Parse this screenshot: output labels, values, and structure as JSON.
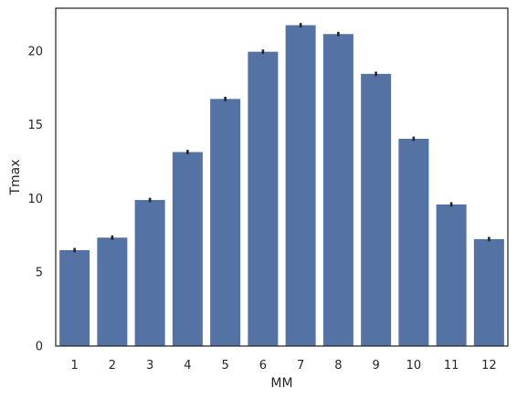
{
  "chart_data": {
    "type": "bar",
    "xlabel": "MM",
    "ylabel": "Tmax",
    "categories": [
      "1",
      "2",
      "3",
      "4",
      "5",
      "6",
      "7",
      "8",
      "9",
      "10",
      "11",
      "12"
    ],
    "values": [
      6.5,
      7.35,
      9.9,
      13.15,
      16.75,
      19.95,
      21.75,
      21.15,
      18.45,
      14.05,
      9.6,
      7.25
    ],
    "error_bars": [
      [
        6.35,
        6.65
      ],
      [
        7.2,
        7.5
      ],
      [
        9.75,
        10.05
      ],
      [
        13.0,
        13.3
      ],
      [
        16.6,
        16.9
      ],
      [
        19.8,
        20.1
      ],
      [
        21.6,
        21.9
      ],
      [
        21.0,
        21.3
      ],
      [
        18.3,
        18.6
      ],
      [
        13.9,
        14.2
      ],
      [
        9.45,
        9.75
      ],
      [
        7.1,
        7.4
      ]
    ],
    "yticks": [
      0,
      5,
      10,
      15,
      20
    ],
    "ylim": [
      0,
      22.9
    ],
    "grid": false,
    "bar_color": "#5572a5",
    "errorbar_color": "#262626"
  }
}
